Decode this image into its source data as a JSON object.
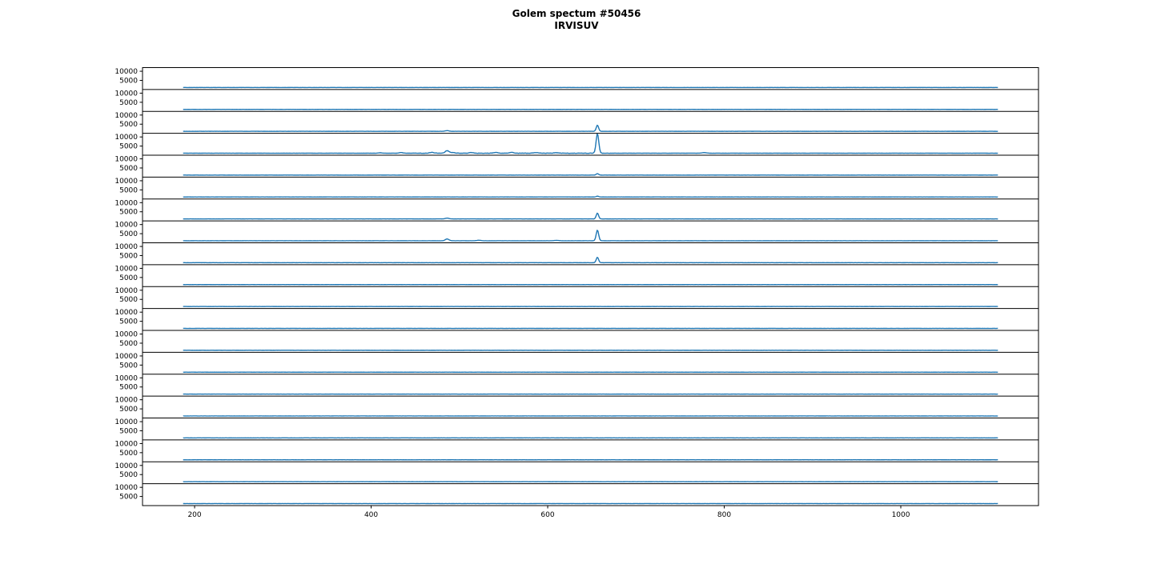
{
  "title": "Golem spectum #50456",
  "subtitle": "IRVISUV",
  "chart_data": {
    "type": "line",
    "title": "Golem spectum #50456",
    "subtitle": "IRVISUV",
    "description": "20 stacked spectrometer time-frames, intensity (counts) vs wavelength (nm)",
    "n_frames": 20,
    "xlim": [
      141,
      1156
    ],
    "ylim": [
      0,
      12000
    ],
    "x_ticks": [
      200,
      400,
      600,
      800,
      1000
    ],
    "y_ticks": [
      10000,
      5000
    ],
    "wavelength_range": [
      187,
      1110
    ],
    "baseline_counts": 1100,
    "line_color": "#1f77b4",
    "axis_color": "#000000",
    "grid": false,
    "legend": false,
    "frames": [
      {
        "frame": 1,
        "peaks": []
      },
      {
        "frame": 2,
        "peaks": []
      },
      {
        "frame": 3,
        "peaks": [
          {
            "nm": 656.3,
            "counts": 3400,
            "sigma": 1.3
          },
          {
            "nm": 486.1,
            "counts": 350,
            "sigma": 2.0
          }
        ]
      },
      {
        "frame": 4,
        "noise_band": {
          "range": [
            435,
            670
          ],
          "amplitude": 90
        },
        "peaks": [
          {
            "nm": 656.3,
            "counts": 10800,
            "sigma": 1.5
          },
          {
            "nm": 486.1,
            "counts": 1400,
            "sigma": 2.0
          },
          {
            "nm": 434.0,
            "counts": 400,
            "sigma": 2.0
          },
          {
            "nm": 410.2,
            "counts": 250,
            "sigma": 2.0
          },
          {
            "nm": 469.0,
            "counts": 450,
            "sigma": 2.5
          },
          {
            "nm": 492.0,
            "counts": 400,
            "sigma": 2.5
          },
          {
            "nm": 513.0,
            "counts": 320,
            "sigma": 2.5
          },
          {
            "nm": 541.0,
            "counts": 380,
            "sigma": 2.5
          },
          {
            "nm": 559.0,
            "counts": 420,
            "sigma": 2.5
          },
          {
            "nm": 587.0,
            "counts": 300,
            "sigma": 2.5
          },
          {
            "nm": 610.0,
            "counts": 280,
            "sigma": 2.5
          },
          {
            "nm": 777.2,
            "counts": 320,
            "sigma": 2.5
          }
        ]
      },
      {
        "frame": 5,
        "peaks": [
          {
            "nm": 656.3,
            "counts": 800,
            "sigma": 1.3
          }
        ]
      },
      {
        "frame": 6,
        "peaks": [
          {
            "nm": 656.3,
            "counts": 500,
            "sigma": 1.3
          }
        ]
      },
      {
        "frame": 7,
        "peaks": [
          {
            "nm": 656.3,
            "counts": 3200,
            "sigma": 1.3
          },
          {
            "nm": 486.1,
            "counts": 420,
            "sigma": 2.0
          }
        ]
      },
      {
        "frame": 8,
        "peaks": [
          {
            "nm": 656.3,
            "counts": 5900,
            "sigma": 1.4
          },
          {
            "nm": 486.1,
            "counts": 1000,
            "sigma": 2.0
          },
          {
            "nm": 522.0,
            "counts": 280,
            "sigma": 2.5
          },
          {
            "nm": 610.0,
            "counts": 240,
            "sigma": 2.5
          }
        ]
      },
      {
        "frame": 9,
        "peaks": [
          {
            "nm": 656.3,
            "counts": 3000,
            "sigma": 1.3
          }
        ]
      },
      {
        "frame": 10,
        "peaks": []
      },
      {
        "frame": 11,
        "peaks": []
      },
      {
        "frame": 12,
        "peaks": []
      },
      {
        "frame": 13,
        "peaks": []
      },
      {
        "frame": 14,
        "peaks": []
      },
      {
        "frame": 15,
        "peaks": []
      },
      {
        "frame": 16,
        "peaks": []
      },
      {
        "frame": 17,
        "peaks": []
      },
      {
        "frame": 18,
        "peaks": []
      },
      {
        "frame": 19,
        "peaks": []
      },
      {
        "frame": 20,
        "peaks": []
      }
    ]
  }
}
